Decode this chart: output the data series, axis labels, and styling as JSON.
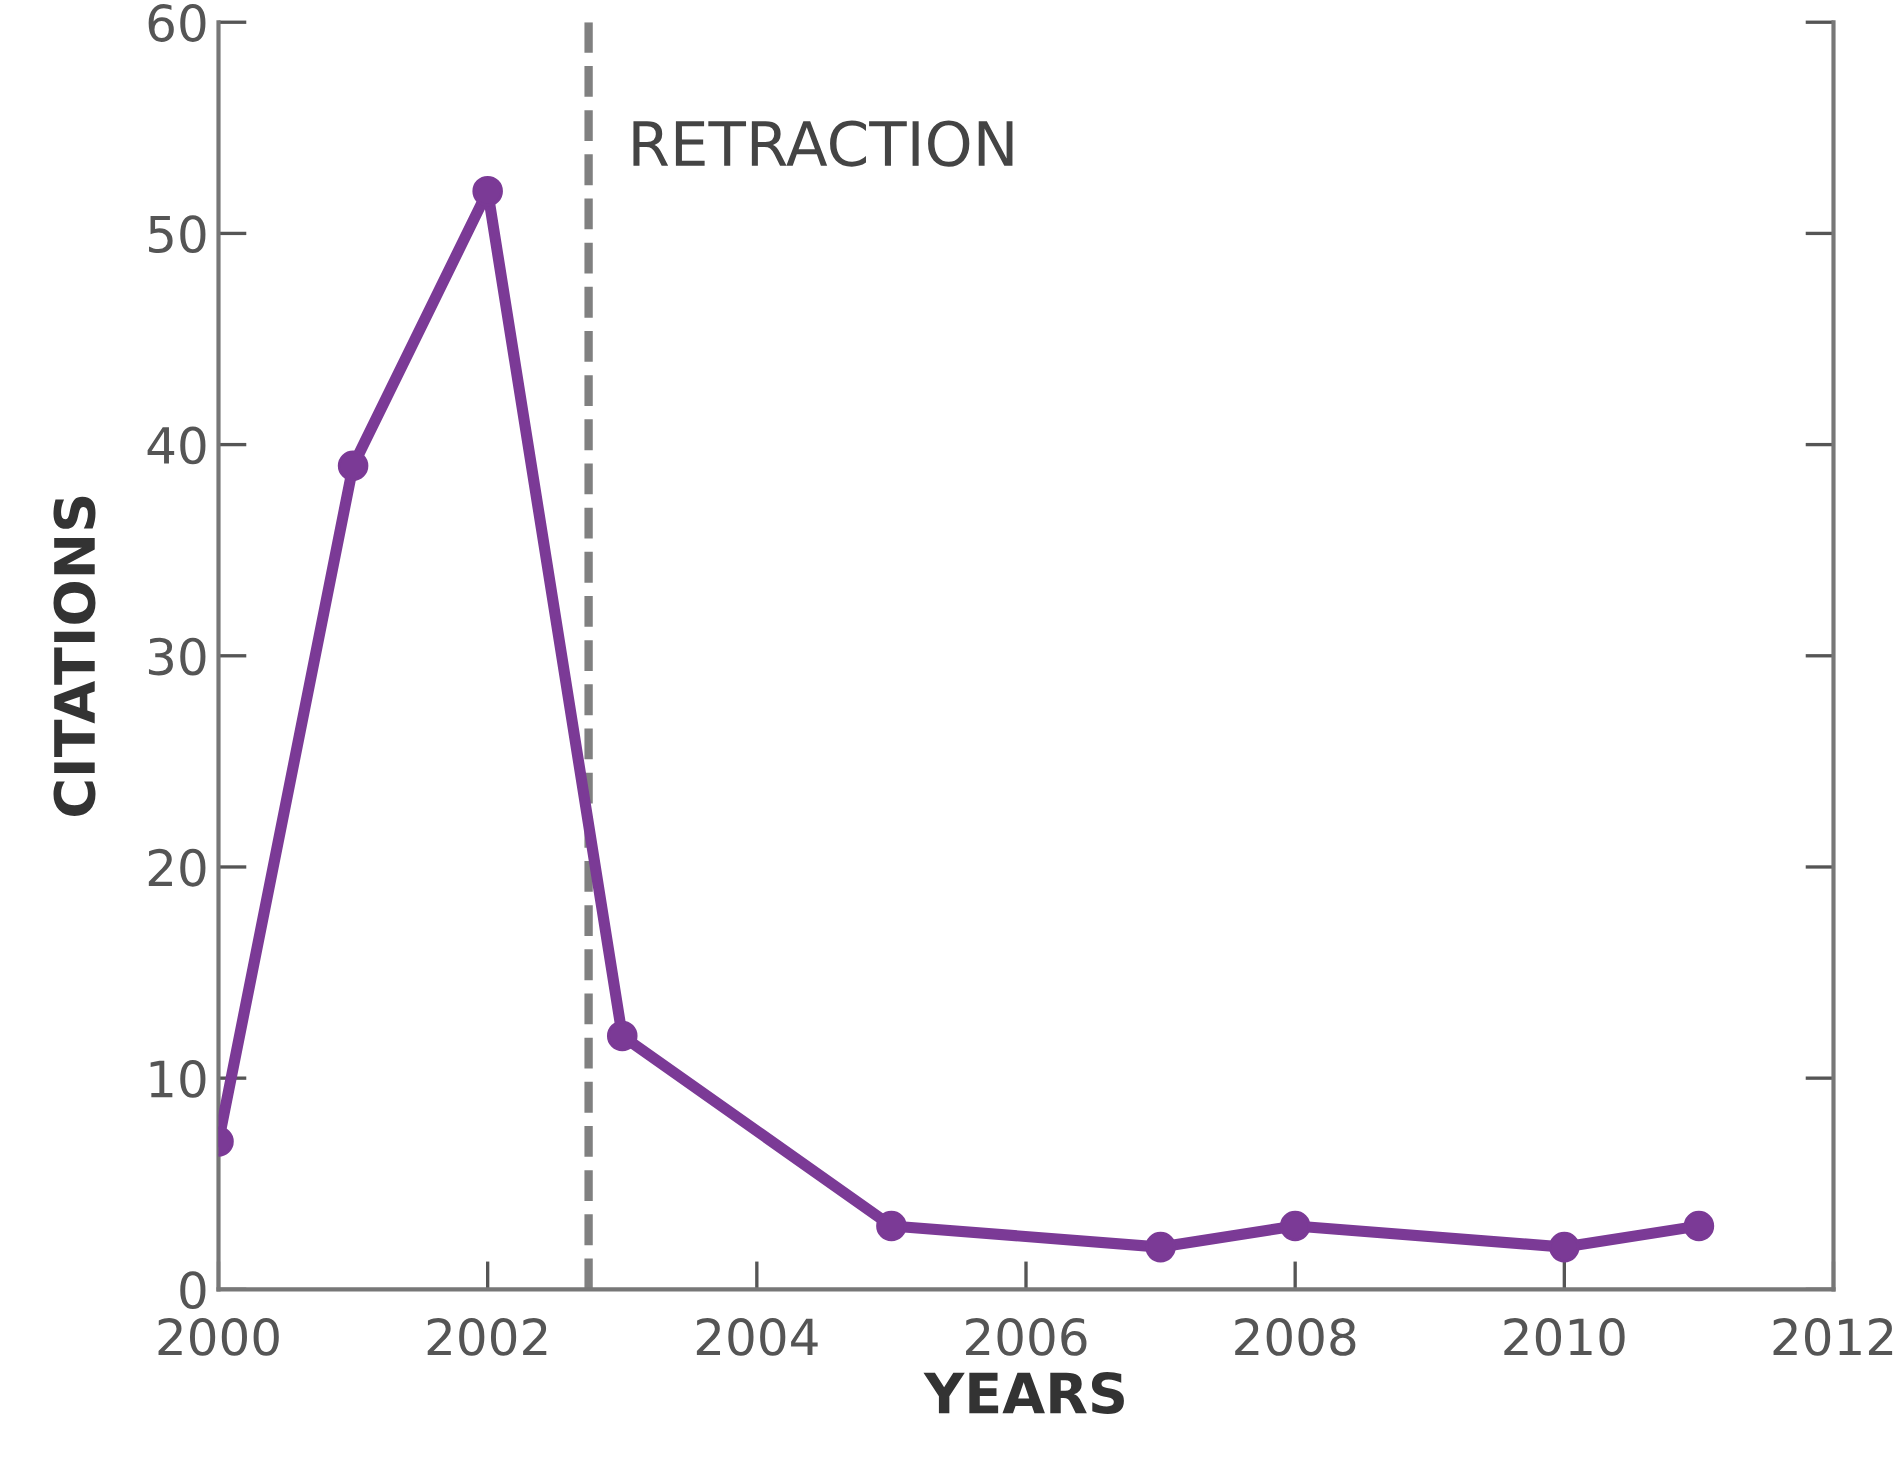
{
  "chart_data": {
    "type": "line",
    "xlabel": "YEARS",
    "ylabel": "CITATIONS",
    "x": [
      2000,
      2001,
      2002,
      2003,
      2005,
      2007,
      2008,
      2010,
      2011
    ],
    "series": [
      {
        "color": "#7b3a96",
        "values": [
          7,
          39,
          52,
          12,
          3,
          2,
          3,
          2,
          3
        ]
      }
    ],
    "xlim": [
      2000,
      2012
    ],
    "xticks": [
      2000,
      2002,
      2004,
      2006,
      2008,
      2010,
      2012
    ],
    "ylim": [
      0,
      60
    ],
    "yticks": [
      0,
      10,
      20,
      30,
      40,
      50,
      60
    ],
    "ref_lines": [
      {
        "axis": "x",
        "value": 2002.75,
        "label": "RETRACTION",
        "color": "#808080",
        "line_style": "dashed"
      }
    ],
    "marker": "circle",
    "line_style": "solid",
    "grid": false,
    "legend": false
  }
}
